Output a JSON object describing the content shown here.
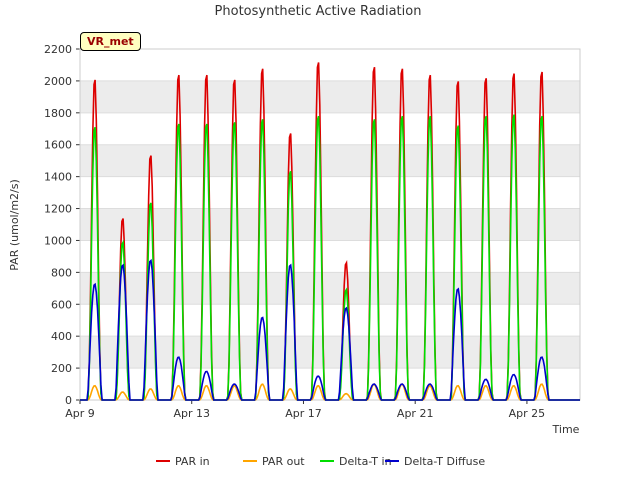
{
  "chart_data": {
    "type": "line",
    "title": "Photosynthetic Active Radiation",
    "xlabel": "Time",
    "ylabel": "PAR (umol/m2/s)",
    "site_label": "VR_met",
    "xlim": [
      9.0,
      26.9
    ],
    "ylim": [
      0,
      2200
    ],
    "x_ticks": [
      {
        "value": 9,
        "label": "Apr 9"
      },
      {
        "value": 13,
        "label": "Apr 13"
      },
      {
        "value": 17,
        "label": "Apr 17"
      },
      {
        "value": 21,
        "label": "Apr 21"
      },
      {
        "value": 25,
        "label": "Apr 25"
      }
    ],
    "y_ticks": [
      0,
      200,
      400,
      600,
      800,
      1000,
      1200,
      1400,
      1600,
      1800,
      2000,
      2200
    ],
    "legend_position": "bottom",
    "daily_peaks": {
      "days": [
        "Apr 9",
        "Apr 10",
        "Apr 11",
        "Apr 12",
        "Apr 13",
        "Apr 14",
        "Apr 15",
        "Apr 16",
        "Apr 17",
        "Apr 18",
        "Apr 19",
        "Apr 20",
        "Apr 21",
        "Apr 22",
        "Apr 23",
        "Apr 24",
        "Apr 25",
        "Apr 26"
      ],
      "day_start": [
        9.0,
        10.0,
        11.0,
        12.0,
        13.0,
        14.0,
        15.0,
        16.0,
        17.0,
        18.0,
        19.0,
        20.0,
        21.0,
        22.0,
        23.0,
        24.0,
        25.0,
        26.0
      ],
      "series": [
        {
          "name": "PAR in",
          "color": "#dd0000",
          "values": [
            2030,
            1150,
            1550,
            2060,
            2060,
            2030,
            2100,
            1690,
            2140,
            870,
            2110,
            2100,
            2060,
            2020,
            2040,
            2070,
            2080,
            0
          ]
        },
        {
          "name": "PAR out",
          "color": "#ffa500",
          "values": [
            90,
            50,
            70,
            90,
            90,
            90,
            100,
            70,
            90,
            40,
            100,
            100,
            90,
            90,
            90,
            90,
            100,
            0
          ]
        },
        {
          "name": "Delta-T in",
          "color": "#00dd00",
          "values": [
            1730,
            1000,
            1250,
            1750,
            1750,
            1760,
            1780,
            1450,
            1800,
            700,
            1780,
            1800,
            1800,
            1740,
            1800,
            1810,
            1800,
            0
          ]
        },
        {
          "name": "Delta-T Diffuse",
          "color": "#0000cc",
          "values": [
            730,
            850,
            880,
            270,
            180,
            100,
            520,
            850,
            150,
            580,
            100,
            100,
            100,
            700,
            130,
            160,
            270,
            0
          ]
        }
      ]
    }
  }
}
